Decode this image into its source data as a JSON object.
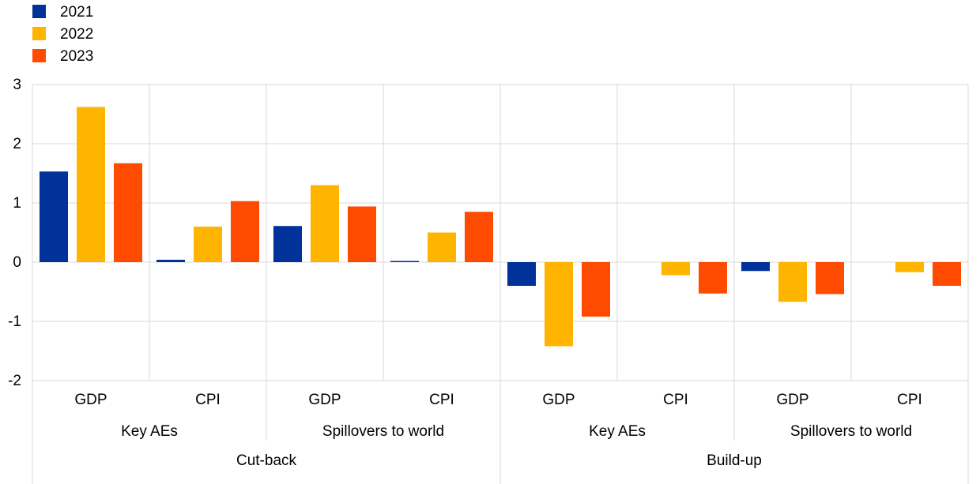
{
  "chart_data": {
    "type": "bar",
    "ylim": [
      -2,
      3
    ],
    "yticks": [
      -2,
      -1,
      0,
      1,
      2,
      3
    ],
    "grid": true,
    "legend_position": "top-left",
    "categories": [
      {
        "label": "GDP",
        "group": "Key AEs",
        "supergroup": "Cut-back"
      },
      {
        "label": "CPI",
        "group": "Key AEs",
        "supergroup": "Cut-back"
      },
      {
        "label": "GDP",
        "group": "Spillovers to world",
        "supergroup": "Cut-back"
      },
      {
        "label": "CPI",
        "group": "Spillovers to world",
        "supergroup": "Cut-back"
      },
      {
        "label": "GDP",
        "group": "Key AEs",
        "supergroup": "Build-up"
      },
      {
        "label": "CPI",
        "group": "Key AEs",
        "supergroup": "Build-up"
      },
      {
        "label": "GDP",
        "group": "Spillovers to world",
        "supergroup": "Build-up"
      },
      {
        "label": "CPI",
        "group": "Spillovers to world",
        "supergroup": "Build-up"
      }
    ],
    "groups": [
      "Key AEs",
      "Spillovers to world",
      "Key AEs",
      "Spillovers to world"
    ],
    "supergroups": [
      "Cut-back",
      "Build-up"
    ],
    "series": [
      {
        "name": "2021",
        "color": "#003299",
        "values": [
          1.53,
          0.04,
          0.61,
          0.02,
          -0.4,
          0.0,
          -0.15,
          0.0
        ]
      },
      {
        "name": "2022",
        "color": "#FFB400",
        "values": [
          2.62,
          0.6,
          1.3,
          0.5,
          -1.42,
          -0.22,
          -0.67,
          -0.17
        ]
      },
      {
        "name": "2023",
        "color": "#FF4B00",
        "values": [
          1.67,
          1.03,
          0.94,
          0.85,
          -0.92,
          -0.53,
          -0.54,
          -0.4
        ]
      }
    ]
  }
}
